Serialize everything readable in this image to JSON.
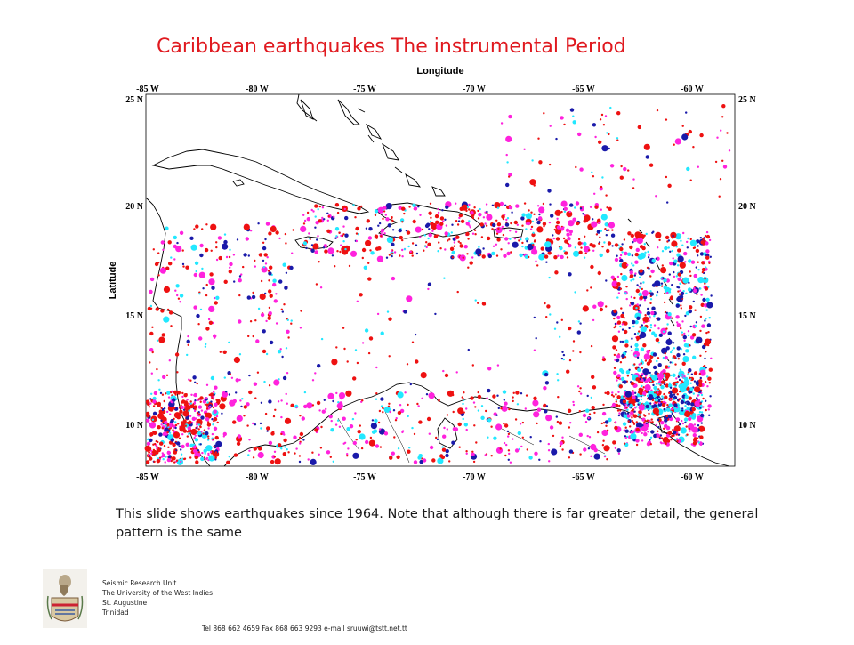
{
  "slide": {
    "title": "Caribbean earthquakes The instrumental Period",
    "caption": "This slide shows earthquakes since 1964. Note that although there is far greater detail, the general pattern is the same"
  },
  "map": {
    "x_axis_label": "Longitude",
    "y_axis_label": "Latitude",
    "top_ticks": [
      "-85 W",
      "-80 W",
      "-75 W",
      "-70 W",
      "-65 W",
      "-60 W"
    ],
    "bottom_ticks": [
      "-85 W",
      "-80 W",
      "-75 W",
      "-70 W",
      "-65 W",
      "-60 W"
    ],
    "left_ticks": [
      "25 N",
      "20 N",
      "15 N",
      "10 N"
    ],
    "right_ticks": [
      "25 N",
      "20 N",
      "15 N",
      "10 N"
    ],
    "lon_range": [
      -86,
      -58
    ],
    "lat_range": [
      8,
      25
    ],
    "colors": {
      "coast": "#000000",
      "quake_red": "#ee1111",
      "quake_magenta": "#ff22dd",
      "quake_cyan": "#22e8ff",
      "quake_blue": "#1a1aaa",
      "title_red": "#e0191f"
    }
  },
  "footer": {
    "org_line1": "Seismic Research Unit",
    "org_line2": "The University of the West Indies",
    "org_line3": "St. Augustine",
    "org_line4": "Trinidad",
    "contact": "Tel 868 662 4659 Fax 868 663 9293 e-mail sruuwi@tstt.net.tt"
  }
}
